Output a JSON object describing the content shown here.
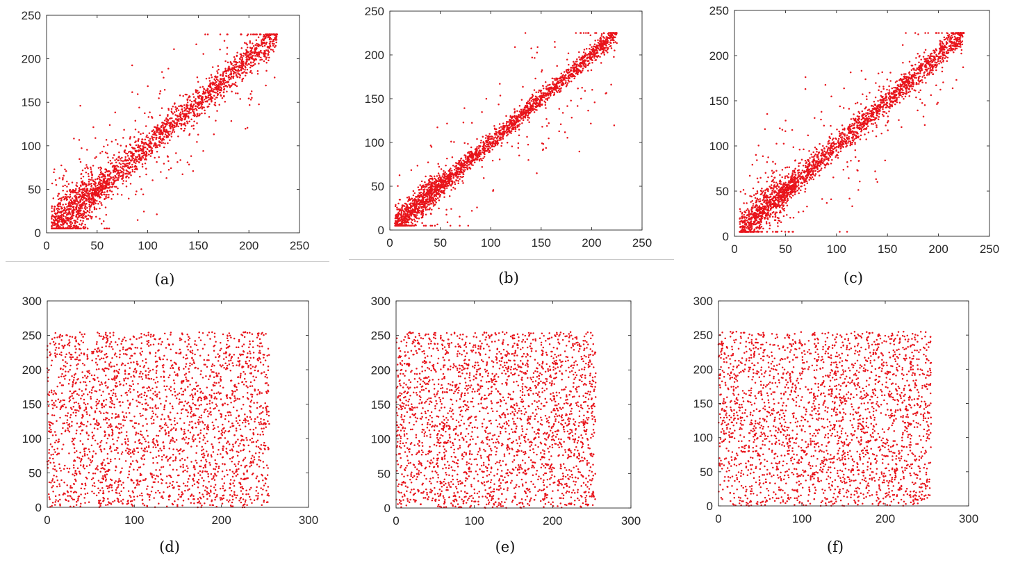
{
  "chart_data": [
    {
      "type": "scatter",
      "caption": "(a)",
      "pattern": "correlated",
      "xlim": [
        0,
        250
      ],
      "ylim": [
        0,
        250
      ],
      "xticks": [
        0,
        50,
        100,
        150,
        200,
        250
      ],
      "yticks": [
        0,
        50,
        100,
        150,
        200,
        250
      ],
      "data_range": [
        5,
        228
      ],
      "spread": 10,
      "outlier_fraction": 0.14,
      "points": 2500,
      "seed": 11
    },
    {
      "type": "scatter",
      "caption": "(b)",
      "pattern": "correlated",
      "xlim": [
        0,
        250
      ],
      "ylim": [
        0,
        250
      ],
      "xticks": [
        0,
        50,
        100,
        150,
        200,
        250
      ],
      "yticks": [
        0,
        50,
        100,
        150,
        200,
        250
      ],
      "data_range": [
        5,
        225
      ],
      "spread": 6,
      "outlier_fraction": 0.08,
      "points": 2500,
      "seed": 23
    },
    {
      "type": "scatter",
      "caption": "(c)",
      "pattern": "correlated",
      "xlim": [
        0,
        250
      ],
      "ylim": [
        0,
        250
      ],
      "xticks": [
        0,
        50,
        100,
        150,
        200,
        250
      ],
      "yticks": [
        0,
        50,
        100,
        150,
        200,
        250
      ],
      "data_range": [
        5,
        225
      ],
      "spread": 8,
      "outlier_fraction": 0.11,
      "points": 2500,
      "seed": 37
    },
    {
      "type": "scatter",
      "caption": "(d)",
      "pattern": "uniform",
      "xlim": [
        0,
        300
      ],
      "ylim": [
        0,
        300
      ],
      "xticks": [
        0,
        100,
        200,
        300
      ],
      "yticks": [
        0,
        50,
        100,
        150,
        200,
        250,
        300
      ],
      "data_range": [
        0,
        255
      ],
      "points": 2500,
      "seed": 41
    },
    {
      "type": "scatter",
      "caption": "(e)",
      "pattern": "uniform",
      "xlim": [
        0,
        300
      ],
      "ylim": [
        0,
        300
      ],
      "xticks": [
        0,
        100,
        200,
        300
      ],
      "yticks": [
        0,
        50,
        100,
        150,
        200,
        250,
        300
      ],
      "data_range": [
        0,
        255
      ],
      "points": 2500,
      "seed": 53
    },
    {
      "type": "scatter",
      "caption": "(f)",
      "pattern": "uniform",
      "xlim": [
        0,
        300
      ],
      "ylim": [
        0,
        300
      ],
      "xticks": [
        0,
        100,
        200,
        300
      ],
      "yticks": [
        0,
        50,
        100,
        150,
        200,
        250,
        300
      ],
      "data_range": [
        0,
        255
      ],
      "points": 2500,
      "seed": 67
    }
  ],
  "colors": {
    "marker": "#e8141b",
    "axis": "#262626"
  }
}
